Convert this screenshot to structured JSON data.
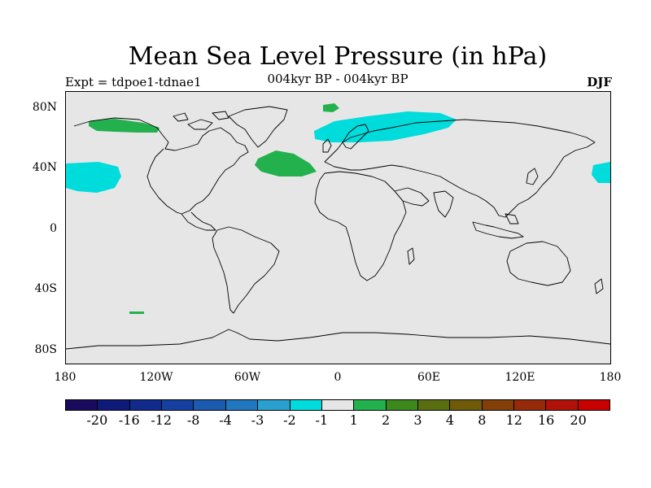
{
  "title": "Mean Sea Level Pressure (in hPa)",
  "subtitle_left": "Expt = tdpoe1-tdnae1",
  "subtitle_center": "004kyr BP - 004kyr BP",
  "subtitle_right": "DJF",
  "lat_labels": [
    "80N",
    "40N",
    "0",
    "40S",
    "80S"
  ],
  "lon_labels": [
    "180",
    "120W",
    "60W",
    "0",
    "60E",
    "120E",
    "180"
  ],
  "colorbar": {
    "colors": [
      "#1a0a5e",
      "#0d1a7a",
      "#102a8e",
      "#1540a0",
      "#1a5aaf",
      "#2077c0",
      "#2aa0d0",
      "#00dcdc",
      "#e6e6e6",
      "#22b14c",
      "#3c8a1e",
      "#586e10",
      "#6e5a08",
      "#824008",
      "#962a0a",
      "#b0120a",
      "#c80000"
    ],
    "labels": [
      "-20",
      "-16",
      "-12",
      "-8",
      "-4",
      "-3",
      "-2",
      "-1",
      "1",
      "2",
      "3",
      "4",
      "8",
      "12",
      "16",
      "20"
    ]
  },
  "map": {
    "background_color": "#e6e6e6",
    "coastline_color": "#000000",
    "anomaly_regions": [
      {
        "label_value": "2",
        "color": "#22b14c",
        "area": "Alaska / Beaufort Sea"
      },
      {
        "label_value": "2",
        "color": "#22b14c",
        "area": "Greenland Sea"
      },
      {
        "label_value": "2",
        "color": "#22b14c",
        "area": "North Atlantic"
      },
      {
        "label_value": "2",
        "color": "#22b14c",
        "area": "Southern Ocean near South America"
      },
      {
        "label_value": "-1",
        "color": "#00dcdc",
        "area": "North Pacific (east)"
      },
      {
        "label_value": "-1",
        "color": "#00dcdc",
        "area": "Scandinavia / Northern Eurasia"
      },
      {
        "label_value": "-1",
        "color": "#00dcdc",
        "area": "North Pacific (west)"
      }
    ]
  }
}
